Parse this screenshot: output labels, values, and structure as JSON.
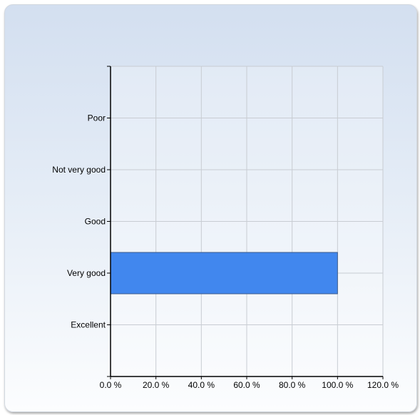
{
  "chart_data": {
    "type": "bar",
    "orientation": "horizontal",
    "categories": [
      "Poor",
      "Not very good",
      "Good",
      "Very good",
      "Excellent"
    ],
    "values": [
      0,
      0,
      0,
      100,
      0
    ],
    "x_ticks": [
      "0.0 %",
      "20.0 %",
      "40.0 %",
      "60.0 %",
      "80.0 %",
      "100.0 %",
      "120.0 %"
    ],
    "xlim": [
      0,
      120
    ],
    "x_unit": "%",
    "grid": true,
    "bar_color": "#4187ee",
    "axis_color": "#000000",
    "grid_color": "#c8ccd2"
  }
}
